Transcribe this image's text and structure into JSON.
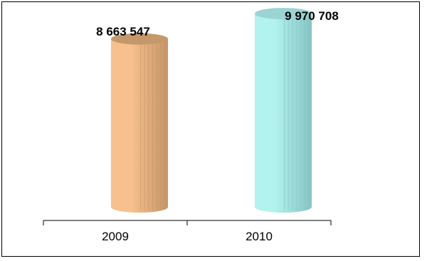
{
  "chart_data": {
    "type": "bar",
    "title": "",
    "xlabel": "",
    "ylabel": "",
    "categories": [
      "2009",
      "2010"
    ],
    "values": [
      8663547,
      9970708
    ],
    "value_labels": [
      "8 663 547",
      "9 970 708"
    ],
    "ylim": [
      0,
      11000000
    ],
    "grid": false,
    "legend": "none",
    "bar_shape": "cylinder",
    "colors": [
      "#f8c08e",
      "#b2f2ef"
    ],
    "dark_colors": [
      "#c49668",
      "#85c4c2"
    ],
    "top_colors": [
      "#c4986a",
      "#9bd4d2"
    ]
  }
}
